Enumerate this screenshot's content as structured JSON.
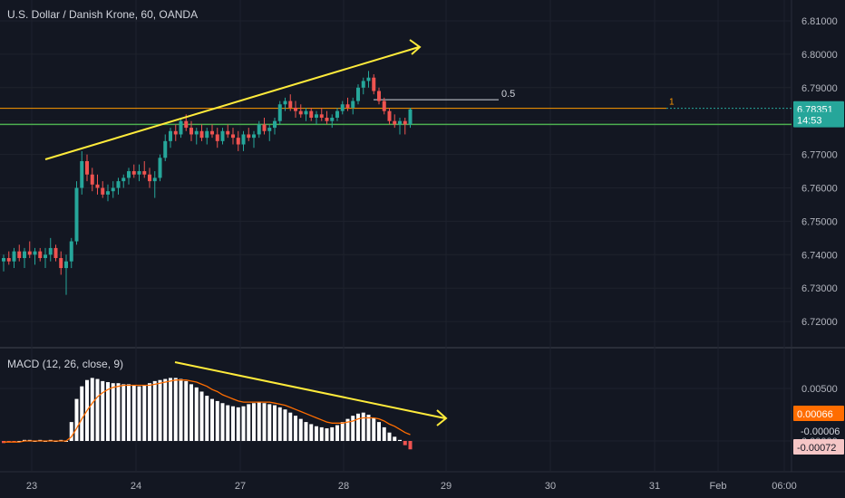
{
  "header": {
    "title": "U.S. Dollar / Danish Krone, 60, OANDA"
  },
  "macd": {
    "title": "MACD (12, 26, close, 9)"
  },
  "colors": {
    "background": "#131722",
    "up": "#26a69a",
    "down": "#ef5350",
    "trendline": "#ffeb3b",
    "hline_green": "#4caf50",
    "hline_orange": "#ff9800",
    "hist": "#ffffff",
    "hist_neg": "#ef5350",
    "signal": "#ff6d00"
  },
  "chart_data": [
    {
      "type": "candlestick",
      "symbol": "USDDKK",
      "ylim": [
        6.712,
        6.815
      ],
      "y_ticks": [
        "6.81000",
        "6.80000",
        "6.79000",
        "6.78000",
        "6.77000",
        "6.76000",
        "6.75000",
        "6.74000",
        "6.73000",
        "6.72000"
      ],
      "x_ticks": [
        "23",
        "24",
        "27",
        "28",
        "29",
        "30",
        "31",
        "Feb",
        "06:00"
      ],
      "current_price": "6.78351",
      "price_tag_2": "14:53",
      "horizontal_lines": [
        {
          "name": "orange-line",
          "value": 6.7838,
          "label": "1"
        },
        {
          "name": "green-line",
          "value": 6.779,
          "label": ""
        },
        {
          "name": "fib-line",
          "value": 6.7864,
          "label": "0.5"
        }
      ],
      "trendline_label": "",
      "candles": [
        [
          6.738,
          6.74,
          6.735,
          6.739
        ],
        [
          6.739,
          6.741,
          6.737,
          6.738
        ],
        [
          6.738,
          6.742,
          6.736,
          6.741
        ],
        [
          6.741,
          6.743,
          6.738,
          6.739
        ],
        [
          6.739,
          6.742,
          6.736,
          6.741
        ],
        [
          6.741,
          6.744,
          6.739,
          6.74
        ],
        [
          6.74,
          6.742,
          6.737,
          6.741
        ],
        [
          6.741,
          6.742,
          6.738,
          6.739
        ],
        [
          6.739,
          6.742,
          6.736,
          6.74
        ],
        [
          6.74,
          6.745,
          6.738,
          6.742
        ],
        [
          6.742,
          6.743,
          6.738,
          6.739
        ],
        [
          6.739,
          6.741,
          6.734,
          6.736
        ],
        [
          6.736,
          6.74,
          6.728,
          6.738
        ],
        [
          6.738,
          6.745,
          6.736,
          6.744
        ],
        [
          6.744,
          6.762,
          6.743,
          6.76
        ],
        [
          6.76,
          6.771,
          6.758,
          6.768
        ],
        [
          6.768,
          6.77,
          6.762,
          6.764
        ],
        [
          6.764,
          6.766,
          6.759,
          6.761
        ],
        [
          6.761,
          6.764,
          6.758,
          6.76
        ],
        [
          6.76,
          6.762,
          6.757,
          6.758
        ],
        [
          6.758,
          6.761,
          6.756,
          6.759
        ],
        [
          6.759,
          6.762,
          6.757,
          6.76
        ],
        [
          6.76,
          6.763,
          6.758,
          6.762
        ],
        [
          6.762,
          6.764,
          6.76,
          6.763
        ],
        [
          6.763,
          6.766,
          6.761,
          6.765
        ],
        [
          6.765,
          6.767,
          6.763,
          6.764
        ],
        [
          6.764,
          6.767,
          6.762,
          6.765
        ],
        [
          6.765,
          6.768,
          6.763,
          6.764
        ],
        [
          6.764,
          6.766,
          6.76,
          6.762
        ],
        [
          6.762,
          6.765,
          6.757,
          6.763
        ],
        [
          6.763,
          6.77,
          6.762,
          6.769
        ],
        [
          6.769,
          6.776,
          6.768,
          6.774
        ],
        [
          6.774,
          6.778,
          6.772,
          6.777
        ],
        [
          6.777,
          6.779,
          6.774,
          6.776
        ],
        [
          6.776,
          6.781,
          6.775,
          6.78
        ],
        [
          6.78,
          6.782,
          6.777,
          6.778
        ],
        [
          6.778,
          6.78,
          6.774,
          6.776
        ],
        [
          6.776,
          6.778,
          6.773,
          6.777
        ],
        [
          6.777,
          6.779,
          6.774,
          6.775
        ],
        [
          6.775,
          6.778,
          6.773,
          6.777
        ],
        [
          6.777,
          6.779,
          6.775,
          6.776
        ],
        [
          6.776,
          6.778,
          6.772,
          6.774
        ],
        [
          6.774,
          6.778,
          6.773,
          6.777
        ],
        [
          6.777,
          6.779,
          6.775,
          6.776
        ],
        [
          6.776,
          6.778,
          6.773,
          6.775
        ],
        [
          6.775,
          6.777,
          6.771,
          6.773
        ],
        [
          6.773,
          6.777,
          6.771,
          6.776
        ],
        [
          6.776,
          6.778,
          6.774,
          6.775
        ],
        [
          6.775,
          6.777,
          6.772,
          6.776
        ],
        [
          6.776,
          6.78,
          6.775,
          6.779
        ],
        [
          6.779,
          6.781,
          6.776,
          6.777
        ],
        [
          6.777,
          6.779,
          6.774,
          6.778
        ],
        [
          6.778,
          6.781,
          6.776,
          6.78
        ],
        [
          6.78,
          6.786,
          6.779,
          6.785
        ],
        [
          6.785,
          6.787,
          6.783,
          6.786
        ],
        [
          6.786,
          6.788,
          6.783,
          6.784
        ],
        [
          6.784,
          6.786,
          6.781,
          6.783
        ],
        [
          6.783,
          6.785,
          6.781,
          6.782
        ],
        [
          6.782,
          6.784,
          6.78,
          6.783
        ],
        [
          6.783,
          6.784,
          6.78,
          6.781
        ],
        [
          6.781,
          6.783,
          6.779,
          6.782
        ],
        [
          6.782,
          6.784,
          6.78,
          6.781
        ],
        [
          6.781,
          6.783,
          6.779,
          6.78
        ],
        [
          6.78,
          6.782,
          6.778,
          6.781
        ],
        [
          6.781,
          6.784,
          6.78,
          6.783
        ],
        [
          6.783,
          6.786,
          6.782,
          6.785
        ],
        [
          6.785,
          6.787,
          6.783,
          6.784
        ],
        [
          6.784,
          6.787,
          6.782,
          6.786
        ],
        [
          6.786,
          6.791,
          6.785,
          6.79
        ],
        [
          6.79,
          6.793,
          6.788,
          6.792
        ],
        [
          6.792,
          6.795,
          6.79,
          6.793
        ],
        [
          6.793,
          6.794,
          6.788,
          6.789
        ],
        [
          6.789,
          6.79,
          6.785,
          6.786
        ],
        [
          6.786,
          6.787,
          6.782,
          6.783
        ],
        [
          6.783,
          6.784,
          6.779,
          6.78
        ],
        [
          6.78,
          6.782,
          6.778,
          6.779
        ],
        [
          6.779,
          6.781,
          6.776,
          6.78
        ],
        [
          6.78,
          6.781,
          6.776,
          6.779
        ],
        [
          6.779,
          6.784,
          6.778,
          6.7835
        ]
      ]
    },
    {
      "type": "macd",
      "ylim": [
        -0.0011,
        0.008
      ],
      "y_ticks": [
        "0.00500",
        "0.00000"
      ],
      "price_tags": [
        "0.00066",
        "-0.00006",
        "-0.00072"
      ],
      "histogram": [
        -0.0002,
        -0.0001,
        -0.0001,
        0.0,
        0.0001,
        0.0001,
        0.0,
        0.0001,
        0.0,
        0.0001,
        0.0,
        0.0001,
        0.0,
        0.0018,
        0.004,
        0.0052,
        0.0058,
        0.006,
        0.0059,
        0.0057,
        0.0056,
        0.0055,
        0.0055,
        0.0054,
        0.0054,
        0.0053,
        0.0052,
        0.0053,
        0.0055,
        0.0057,
        0.0058,
        0.0059,
        0.006,
        0.006,
        0.0059,
        0.0057,
        0.0054,
        0.0051,
        0.0047,
        0.0043,
        0.004,
        0.0038,
        0.0036,
        0.0034,
        0.0033,
        0.0032,
        0.0033,
        0.0035,
        0.0036,
        0.0037,
        0.0036,
        0.0035,
        0.0034,
        0.0032,
        0.003,
        0.0027,
        0.0024,
        0.0021,
        0.0018,
        0.0016,
        0.0014,
        0.0013,
        0.0012,
        0.0013,
        0.0015,
        0.0018,
        0.0021,
        0.0024,
        0.0026,
        0.0027,
        0.0025,
        0.0022,
        0.0018,
        0.0013,
        0.0008,
        0.0004,
        0.0001,
        -0.0004,
        -0.0008
      ],
      "signal": [
        -0.0001,
        -0.0001,
        -0.0001,
        -0.0001,
        0.0,
        0.0,
        0.0,
        0.0,
        0.0,
        0.0,
        0.0,
        0.0,
        0.0,
        0.0004,
        0.0012,
        0.0021,
        0.0029,
        0.0036,
        0.0042,
        0.0046,
        0.0049,
        0.0051,
        0.0052,
        0.0053,
        0.0053,
        0.0053,
        0.0053,
        0.0053,
        0.0053,
        0.0054,
        0.0055,
        0.0056,
        0.0057,
        0.0058,
        0.0058,
        0.0058,
        0.0057,
        0.0056,
        0.0054,
        0.0052,
        0.0049,
        0.0047,
        0.0044,
        0.0042,
        0.004,
        0.0038,
        0.0037,
        0.0037,
        0.0037,
        0.0037,
        0.0037,
        0.0037,
        0.0036,
        0.0035,
        0.0034,
        0.0032,
        0.003,
        0.0028,
        0.0026,
        0.0024,
        0.0022,
        0.002,
        0.0018,
        0.0017,
        0.0017,
        0.0017,
        0.0018,
        0.0019,
        0.0021,
        0.0022,
        0.0022,
        0.0022,
        0.0021,
        0.0019,
        0.0016,
        0.0014,
        0.0011,
        0.0008,
        0.0006
      ]
    }
  ]
}
